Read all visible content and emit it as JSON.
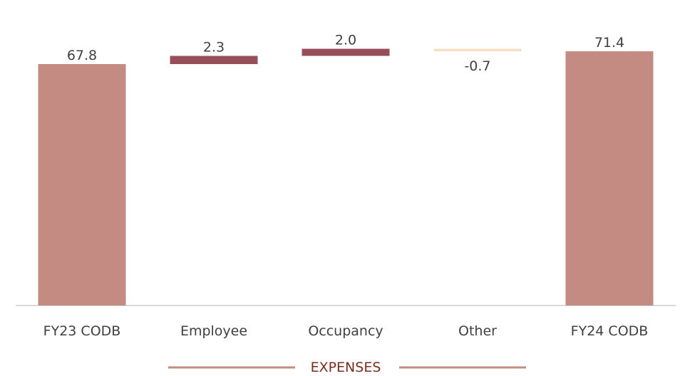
{
  "chart_data": {
    "type": "waterfall",
    "categories": [
      "FY23 CODB",
      "Employee",
      "Occupancy",
      "Other",
      "FY24 CODB"
    ],
    "points": [
      {
        "category": "FY23 CODB",
        "kind": "total",
        "value": 67.8,
        "label": "67.8"
      },
      {
        "category": "Employee",
        "kind": "delta",
        "value": 2.3,
        "label": "2.3"
      },
      {
        "category": "Occupancy",
        "kind": "delta",
        "value": 2.0,
        "label": "2.0"
      },
      {
        "category": "Other",
        "kind": "delta",
        "value": -0.7,
        "label": "-0.7"
      },
      {
        "category": "FY24 CODB",
        "kind": "total",
        "value": 71.4,
        "label": "71.4"
      }
    ],
    "group_label": "EXPENSES",
    "group_categories": [
      "Employee",
      "Occupancy",
      "Other"
    ],
    "title": "",
    "xlabel": "",
    "ylabel": "",
    "ylim": [
      0,
      75
    ],
    "grid": false,
    "colors": {
      "total": "#c48b83",
      "increase": "#964e59",
      "decrease": "#f5dfc2",
      "axis": "#d9d9d9",
      "group_line": "#c48b83",
      "group_text": "#7a2e1e",
      "label_text": "#404040"
    }
  }
}
